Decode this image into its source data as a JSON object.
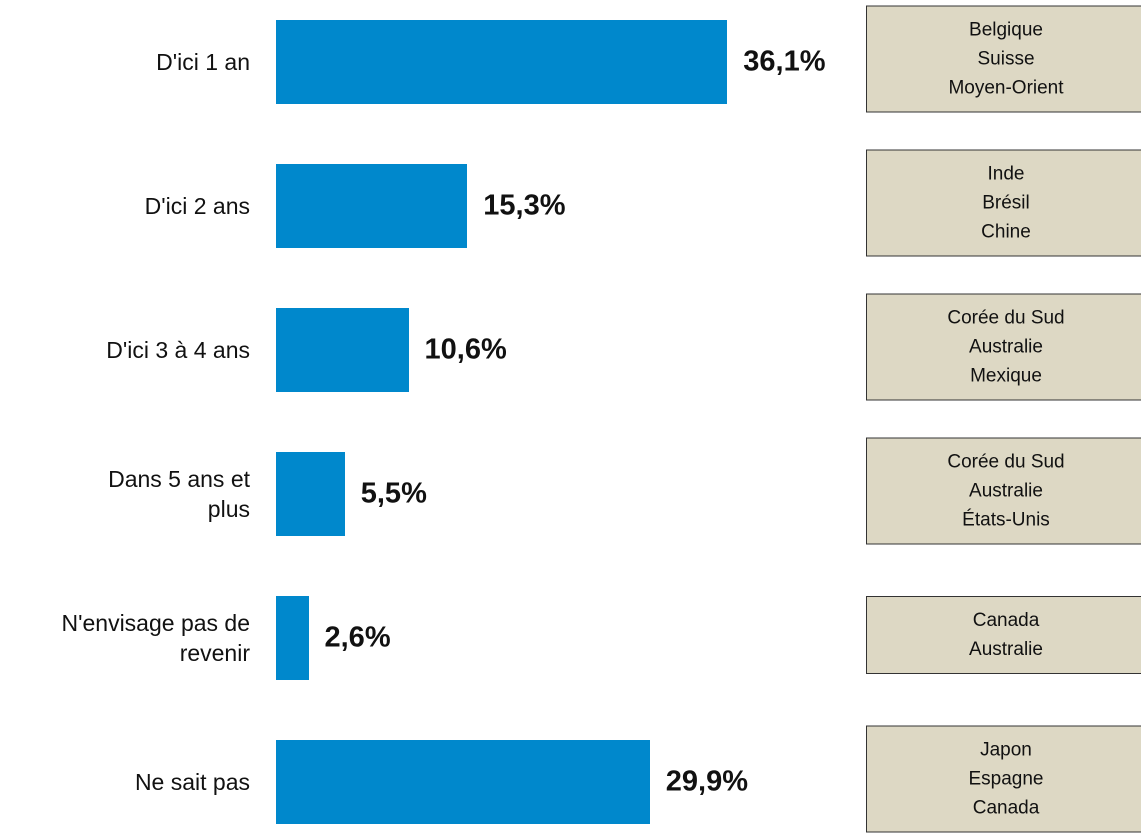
{
  "chart_data": {
    "type": "bar",
    "orientation": "horizontal",
    "categories": [
      "D'ici 1 an",
      "D'ici 2 ans",
      "D'ici 3 à 4 ans",
      "Dans 5 ans et\nplus",
      "N'envisage pas de\nrevenir",
      "Ne sait pas"
    ],
    "values": [
      36.1,
      15.3,
      10.6,
      5.5,
      2.6,
      29.9
    ],
    "value_labels": [
      "36,1%",
      "15,3%",
      "10,6%",
      "5,5%",
      "2,6%",
      "29,9%"
    ],
    "color": "#0088cc",
    "annotations": [
      [
        "Belgique",
        "Suisse",
        "Moyen-Orient"
      ],
      [
        "Inde",
        "Brésil",
        "Chine"
      ],
      [
        "Corée du Sud",
        "Australie",
        "Mexique"
      ],
      [
        "Corée du Sud",
        "Australie",
        "États-Unis"
      ],
      [
        "Canada",
        "Australie"
      ],
      [
        "Japon",
        "Espagne",
        "Canada"
      ]
    ]
  }
}
